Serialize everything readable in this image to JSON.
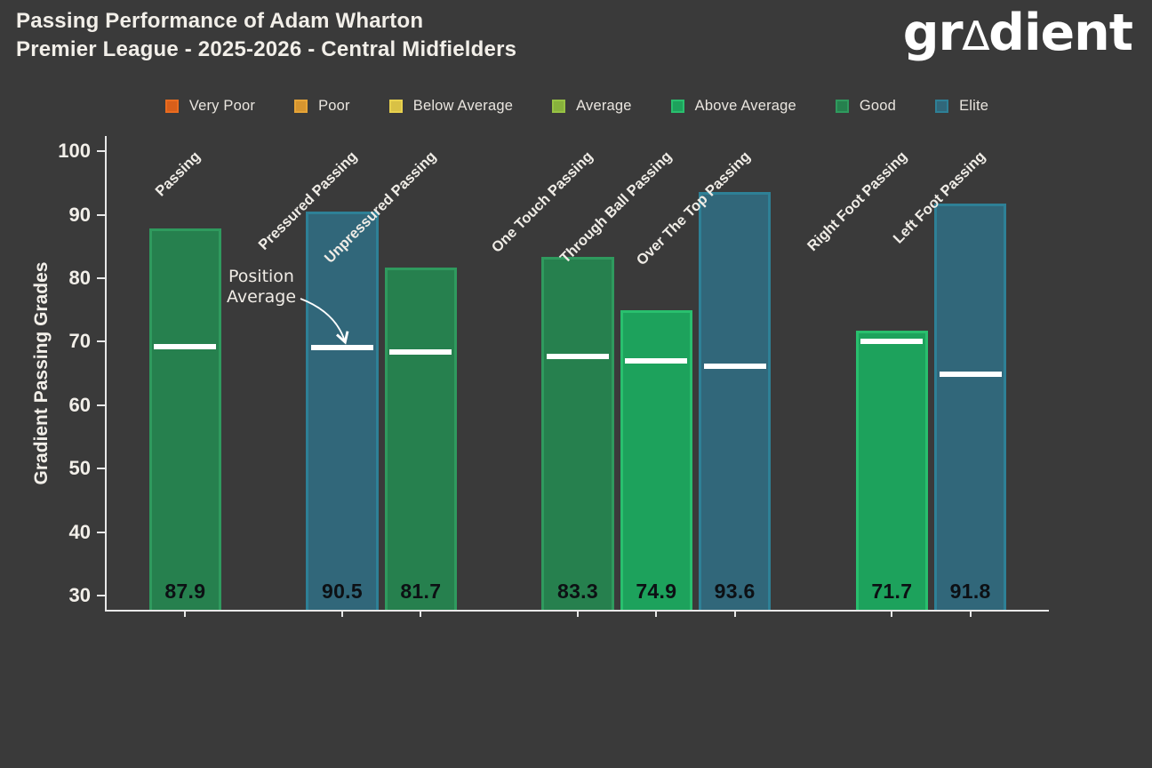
{
  "header": {
    "title_line1": "Passing Performance of Adam Wharton",
    "title_line2": "Premier League - 2025-2026 - Central Midfielders",
    "logo_prefix": "gr",
    "logo_triangle": "∆",
    "logo_suffix": "dient"
  },
  "colors": {
    "background": "#3a3a3a",
    "title_text": "#f2efe9",
    "axis": "#e8e8e8",
    "tick_text": "#f2efe9",
    "value_text": "#0d1014",
    "avg_line": "#ffffff",
    "annotation_text": "#f0ece6",
    "grades": {
      "Very Poor": {
        "fill": "#d85f1a",
        "edge": "#ea6c1f"
      },
      "Poor": {
        "fill": "#d6952f",
        "edge": "#e6a437"
      },
      "Below Average": {
        "fill": "#d9c145",
        "edge": "#e8d14e"
      },
      "Average": {
        "fill": "#88b23c",
        "edge": "#97c244"
      },
      "Above Average": {
        "fill": "#1da25c",
        "edge": "#29bf6e"
      },
      "Good": {
        "fill": "#26804e",
        "edge": "#2f9a5e"
      },
      "Elite": {
        "fill": "#31677a",
        "edge": "#2e8096"
      }
    }
  },
  "chart_data": {
    "type": "bar",
    "title": "Passing Performance of Adam Wharton",
    "subtitle": "Premier League - 2025-2026 - Central Midfielders",
    "ylabel": "Gradient Passing Grades",
    "xlabel": "",
    "ylim": [
      30,
      100
    ],
    "yticks": [
      30,
      40,
      50,
      60,
      70,
      80,
      90,
      100
    ],
    "x_range": [
      -1,
      11
    ],
    "bar_width_units": 0.92,
    "grid": false,
    "legend_position": "top",
    "legend_entries": [
      "Very Poor",
      "Poor",
      "Below Average",
      "Average",
      "Above Average",
      "Good",
      "Elite"
    ],
    "categories": [
      "Passing",
      "Pressured Passing",
      "Unpressured Passing",
      "One Touch Passing",
      "Through Ball Passing",
      "Over The Top Passing",
      "Right Foot Passing",
      "Left Foot Passing"
    ],
    "slots": [
      0,
      2,
      3,
      5,
      6,
      7,
      9,
      10
    ],
    "values": [
      87.9,
      90.5,
      81.7,
      83.3,
      74.9,
      93.6,
      71.7,
      91.8
    ],
    "value_labels": [
      "87.9",
      "90.5",
      "81.7",
      "83.3",
      "74.9",
      "93.6",
      "71.7",
      "91.8"
    ],
    "grades": [
      "Good",
      "Elite",
      "Good",
      "Good",
      "Above Average",
      "Elite",
      "Above Average",
      "Elite"
    ],
    "position_averages": [
      69.2,
      69.0,
      68.4,
      67.6,
      66.9,
      66.1,
      70.1,
      64.9
    ],
    "annotation": {
      "line1": "Position",
      "line2": "Average",
      "target_category": "Pressured Passing",
      "target_value": 69.0
    }
  }
}
